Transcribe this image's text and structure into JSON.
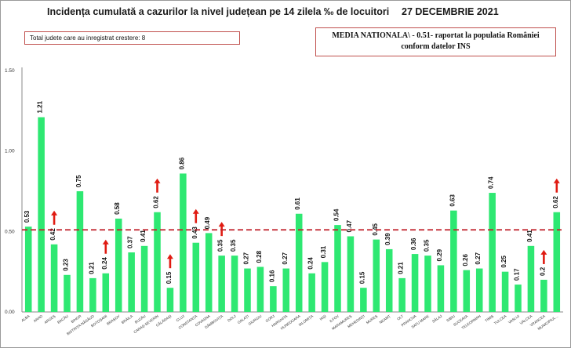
{
  "header": {
    "title": "Incidența cumulată a cazurilor la nivel județean pe 14 zilela ‰ de locuitori",
    "date": "27 DECEMBRIE 2021"
  },
  "info_left": "Total judete care au inregistrat crestere: 8",
  "info_right": {
    "line1": "MEDIA NATIONALA\\ - 0.51-  raportat la populatia României",
    "line2": "conform datelor INS"
  },
  "colors": {
    "bar": "#2ee872",
    "reference_line": "#c0202a",
    "arrow": "#e01b12",
    "box_border": "#c0504d",
    "axis_text": "#333333"
  },
  "chart_data": {
    "type": "bar",
    "title": "Incidența cumulată a cazurilor la nivel județean pe 14 zilela ‰ de locuitori",
    "xlabel": "",
    "ylabel": "",
    "ylim": [
      0,
      1.5
    ],
    "yticks": [
      "0.00",
      "0.50",
      "1.00",
      "1.50"
    ],
    "grid": false,
    "categories": [
      "ALBA",
      "ARAD",
      "ARGEȘ",
      "BACĂU",
      "BIHOR",
      "BISTRIȚA-NĂSĂUD",
      "BOTOȘANI",
      "BRAȘOV",
      "BRĂILA",
      "BUZĂU",
      "CARAȘ-SEVERIN",
      "CĂLĂRAȘI",
      "CLUJ",
      "CONSTANȚA",
      "COVASNA",
      "DÂMBOVIȚA",
      "DOLJ",
      "GALAȚI",
      "GIURGIU",
      "GORJ",
      "HARGHITA",
      "HUNEDOARA",
      "IALOMIȚA",
      "IAȘI",
      "ILFOV",
      "MARAMUREȘ",
      "MEHEDINȚI",
      "MUREȘ",
      "NEAMȚ",
      "OLT",
      "PRAHOVA",
      "SATU MARE",
      "SĂLAJ",
      "SIBIU",
      "SUCEAVA",
      "TELEORMAN",
      "TIMIȘ",
      "TULCEA",
      "VASLUI",
      "VÂLCEA",
      "VRANCEA",
      "MUNICIPIUL..."
    ],
    "values": [
      0.53,
      1.21,
      0.42,
      0.23,
      0.75,
      0.21,
      0.24,
      0.58,
      0.37,
      0.41,
      0.62,
      0.15,
      0.86,
      0.43,
      0.49,
      0.35,
      0.35,
      0.27,
      0.28,
      0.16,
      0.27,
      0.61,
      0.24,
      0.31,
      0.54,
      0.47,
      0.15,
      0.45,
      0.39,
      0.21,
      0.36,
      0.35,
      0.29,
      0.63,
      0.26,
      0.27,
      0.74,
      0.25,
      0.17,
      0.41,
      0.2,
      0.62
    ],
    "labels": [
      "0.53",
      "1.21",
      "0.42",
      "0.23",
      "0.75",
      "0.21",
      "0.24",
      "0.58",
      "0.37",
      "0.41",
      "0.62",
      "0.15",
      "0.86",
      "0.43",
      "0.49",
      "0.35",
      "0.35",
      "0.27",
      "0.28",
      "0.16",
      "0.27",
      "0.61",
      "0.24",
      "0.31",
      "0.54",
      "0.47",
      "0.15",
      "0.45",
      "0.39",
      "0.21",
      "0.36",
      "0.35",
      "0.29",
      "0.63",
      "0.26",
      "0.27",
      "0.74",
      "0.25",
      "0.17",
      "0.41",
      "0.2",
      "0.62"
    ],
    "increase": [
      false,
      false,
      true,
      false,
      false,
      false,
      true,
      false,
      false,
      false,
      true,
      true,
      false,
      true,
      false,
      true,
      false,
      false,
      false,
      false,
      false,
      false,
      false,
      false,
      false,
      false,
      false,
      false,
      false,
      false,
      false,
      false,
      false,
      false,
      false,
      false,
      false,
      false,
      false,
      false,
      true,
      true
    ],
    "reference_line": {
      "value": 0.51,
      "style": "dashed"
    }
  }
}
